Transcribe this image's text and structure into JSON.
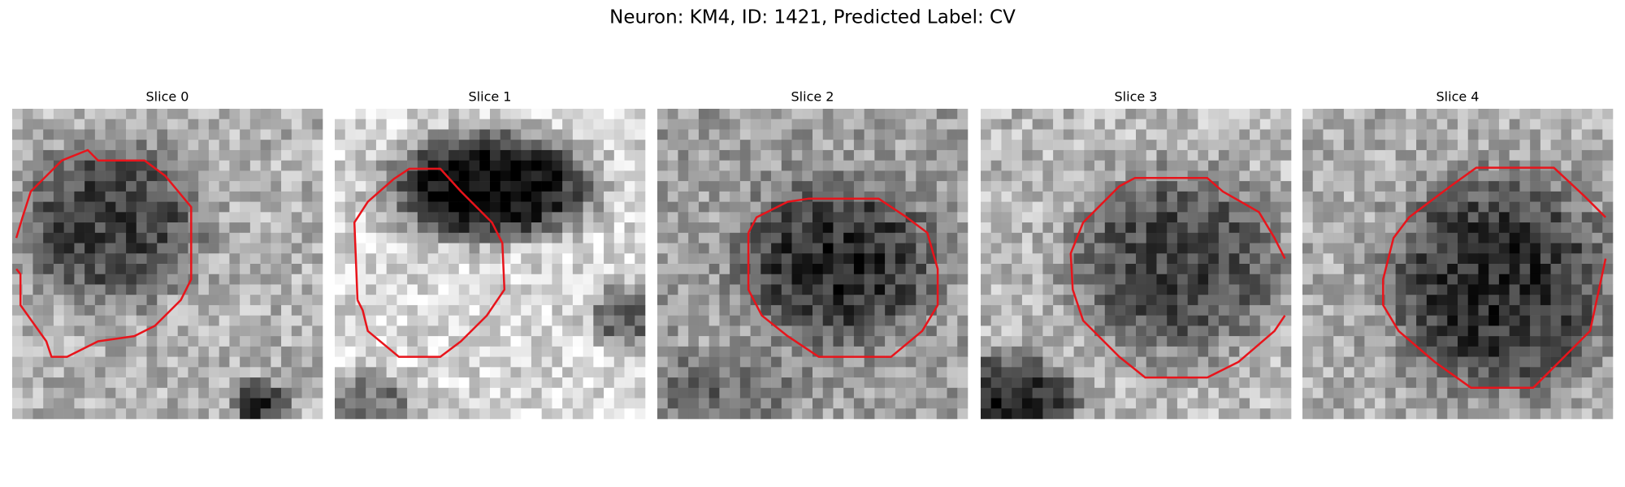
{
  "title": "Neuron: KM4, ID: 1421, Predicted Label: CV",
  "panels": [
    {
      "title": "Slice 0"
    },
    {
      "title": "Slice 1"
    },
    {
      "title": "Slice 2"
    },
    {
      "title": "Slice 3"
    },
    {
      "title": "Slice 4"
    }
  ]
}
